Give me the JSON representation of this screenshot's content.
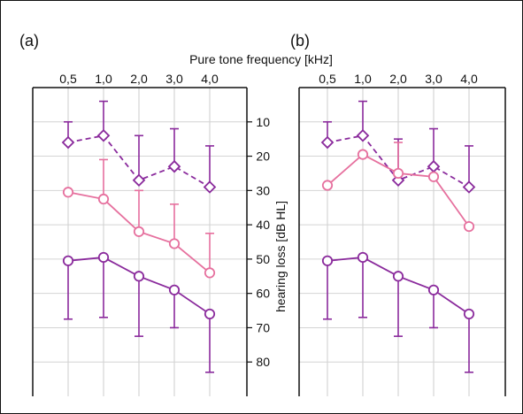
{
  "chart_data": [
    {
      "type": "line",
      "panel_label": "(a)",
      "x_title": "",
      "x_categories": [
        "0,5",
        "1,0",
        "2,0",
        "3,0",
        "4,0"
      ],
      "series": [
        {
          "marker": "diamond",
          "dash": true,
          "color": "#8a2a9c",
          "values": [
            16,
            14,
            27,
            23,
            29
          ],
          "error_upper": [
            10,
            4,
            14,
            12,
            17
          ],
          "error_lower": [
            16,
            14,
            27,
            23,
            29
          ]
        },
        {
          "marker": "circle",
          "dash": false,
          "color": "#e6709e",
          "values": [
            30.5,
            32.5,
            42,
            45.5,
            54
          ],
          "error_upper": [
            30.5,
            21,
            30,
            34,
            42.5
          ],
          "error_lower": [
            30.5,
            32.5,
            42,
            45.5,
            54
          ]
        },
        {
          "marker": "circle",
          "dash": false,
          "color": "#8a2a9c",
          "values": [
            50.5,
            49.5,
            55,
            59,
            66
          ],
          "error_upper": [
            50.5,
            49.5,
            55,
            59,
            66
          ],
          "error_lower": [
            67.5,
            67,
            72.5,
            70,
            83
          ]
        }
      ]
    },
    {
      "type": "line",
      "panel_label": "(b)",
      "x_title": "Pure tone frequency  [kHz]",
      "x_categories": [
        "0,5",
        "1,0",
        "2,0",
        "3,0",
        "4,0"
      ],
      "series": [
        {
          "marker": "diamond",
          "dash": true,
          "color": "#8a2a9c",
          "values": [
            16,
            14,
            27,
            23,
            29
          ],
          "error_upper": [
            10,
            4,
            15,
            12,
            17
          ],
          "error_lower": [
            16,
            14,
            27,
            23,
            29
          ]
        },
        {
          "marker": "circle",
          "dash": false,
          "color": "#e6709e",
          "values": [
            28.5,
            19.5,
            25,
            26,
            40.5
          ],
          "error_upper": [
            28.5,
            19.5,
            16,
            26,
            40.5
          ],
          "error_lower": [
            28.5,
            19.5,
            25,
            26,
            40.5
          ]
        },
        {
          "marker": "circle",
          "dash": false,
          "color": "#8a2a9c",
          "values": [
            50.5,
            49.5,
            55,
            59,
            66
          ],
          "error_upper": [
            50.5,
            49.5,
            55,
            59,
            66
          ],
          "error_lower": [
            67.5,
            67,
            72.5,
            70,
            83
          ]
        }
      ]
    }
  ],
  "y_axis": {
    "label": "hearing loss [dB HL]",
    "ticks": [
      10,
      20,
      30,
      40,
      50,
      60,
      70,
      80
    ],
    "range": [
      0,
      90
    ],
    "reversed": true
  }
}
